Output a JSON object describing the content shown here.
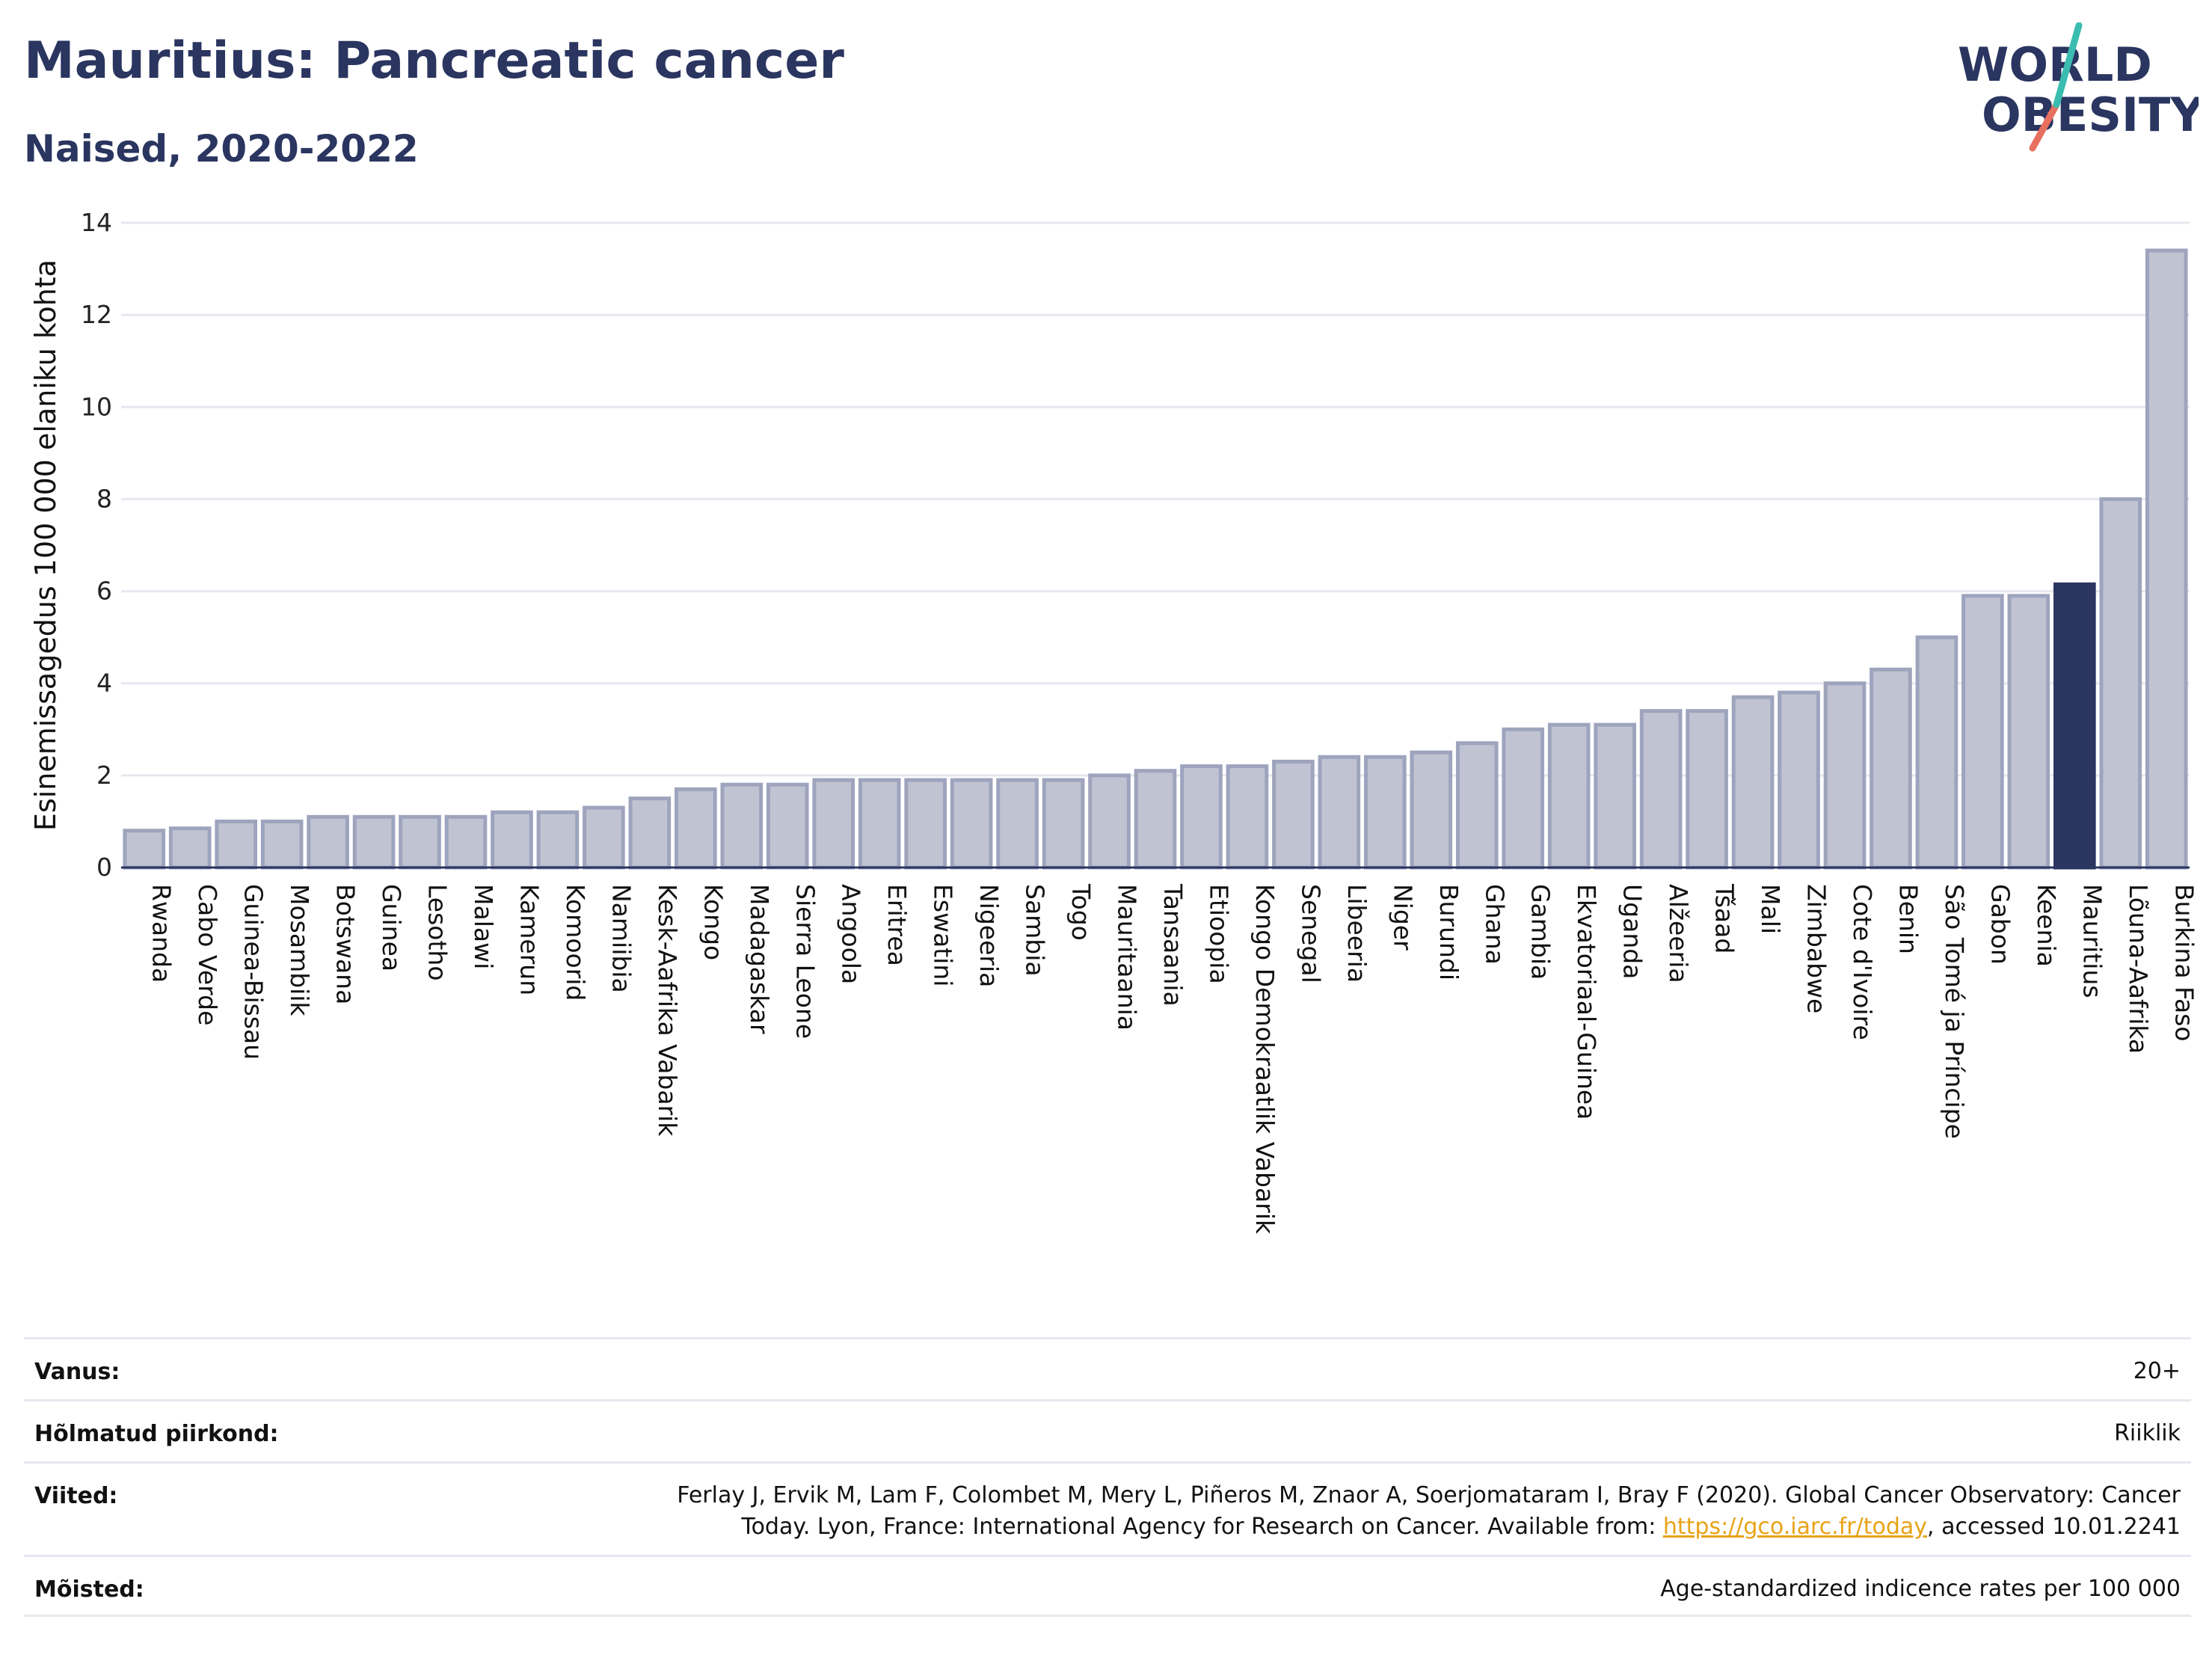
{
  "header": {
    "title": "Mauritius: Pancreatic cancer",
    "subtitle": "Naised, 2020-2022"
  },
  "logo": {
    "line1": "WORLD",
    "line2": "OBESITY"
  },
  "chart_data": {
    "type": "bar",
    "title": "Mauritius: Pancreatic cancer",
    "subtitle": "Naised, 2020-2022",
    "ylabel": "Esinemissagedus 100 000 elaniku kohta",
    "xlabel": "",
    "ylim": [
      0,
      14
    ],
    "yticks": [
      0,
      2,
      4,
      6,
      8,
      10,
      12,
      14
    ],
    "grid": true,
    "highlight": "Mauritius",
    "colors": {
      "bar": "#bfc3d2",
      "bar_border": "#9ea4bd",
      "highlight": "#2a3560"
    },
    "categories": [
      "Rwanda",
      "Cabo Verde",
      "Guinea-Bissau",
      "Mosambiik",
      "Botswana",
      "Guinea",
      "Lesotho",
      "Malawi",
      "Kamerun",
      "Komoorid",
      "Namiibia",
      "Kesk-Aafrika Vabarik",
      "Kongo",
      "Madagaskar",
      "Sierra Leone",
      "Angoola",
      "Eritrea",
      "Eswatini",
      "Nigeeria",
      "Sambia",
      "Togo",
      "Mauritaania",
      "Tansaania",
      "Etioopia",
      "Kongo Demokraatlik Vabarik",
      "Senegal",
      "Libeeria",
      "Niger",
      "Burundi",
      "Ghana",
      "Gambia",
      "Ekvatoriaal-Guinea",
      "Uganda",
      "Alžeeria",
      "Tšaad",
      "Mali",
      "Zimbabwe",
      "Cote d'Ivoire",
      "Benin",
      "São Tomé ja Príncipe",
      "Gabon",
      "Keenia",
      "Mauritius",
      "Lõuna-Aafrika",
      "Burkina Faso"
    ],
    "values": [
      0.8,
      0.85,
      1.0,
      1.0,
      1.1,
      1.1,
      1.1,
      1.1,
      1.2,
      1.2,
      1.3,
      1.5,
      1.7,
      1.8,
      1.8,
      1.9,
      1.9,
      1.9,
      1.9,
      1.9,
      1.9,
      2.0,
      2.1,
      2.2,
      2.2,
      2.3,
      2.4,
      2.4,
      2.5,
      2.7,
      3.0,
      3.1,
      3.1,
      3.4,
      3.4,
      3.7,
      3.8,
      4.0,
      4.3,
      5.0,
      5.9,
      5.9,
      6.15,
      8.0,
      13.4
    ]
  },
  "meta": {
    "rows": [
      {
        "key": "Vanus:",
        "value": "20+"
      },
      {
        "key": "Hõlmatud piirkond:",
        "value": "Riiklik"
      },
      {
        "key": "Viited:",
        "value_line1": "Ferlay J, Ervik M, Lam F, Colombet M, Mery L, Piñeros M, Znaor A, Soerjomataram I, Bray F (2020). Global Cancer Observatory: Cancer",
        "value_line2_pre": "Today. Lyon, France: International Agency for Research on Cancer. Available from: ",
        "link": "https://gco.iarc.fr/today",
        "value_line2_post": ", accessed 10.01.2241"
      },
      {
        "key": "Mõisted:",
        "value": "Age-standardized indicence rates per 100 000"
      }
    ]
  }
}
